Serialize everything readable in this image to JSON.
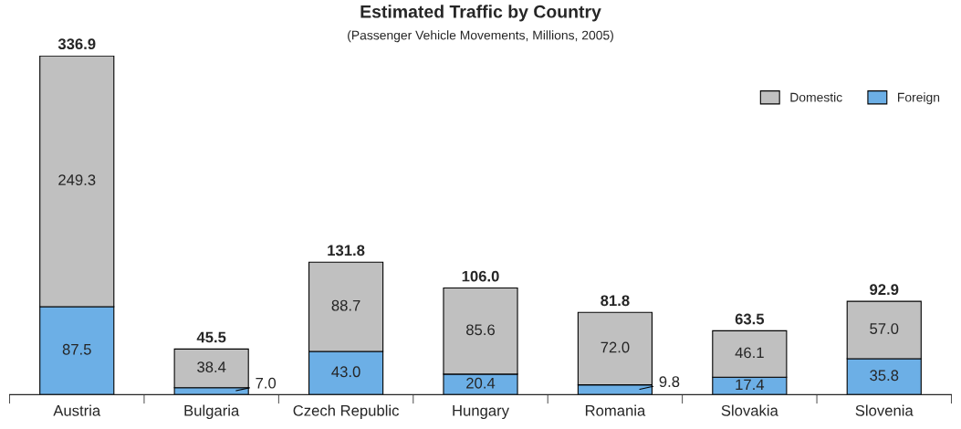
{
  "chart_data": {
    "type": "bar",
    "title": "Estimated Traffic by Country",
    "subtitle": "(Passenger Vehicle Movements, Millions, 2005)",
    "categories": [
      "Austria",
      "Bulgaria",
      "Czech Republic",
      "Hungary",
      "Romania",
      "Slovakia",
      "Slovenia"
    ],
    "stacked": true,
    "legend": "top right",
    "tick_labels": "x",
    "grid": false,
    "series": [
      {
        "name": "Foreign",
        "color": "#6cafe6",
        "values": [
          87.5,
          7.0,
          43.0,
          20.4,
          9.8,
          17.4,
          35.8
        ],
        "value_labels": [
          "87.5",
          "7.0",
          "43.0",
          "20.4",
          "9.8",
          "17.4",
          "35.8"
        ]
      },
      {
        "name": "Domestic",
        "color": "#c0c0c0",
        "values": [
          249.3,
          38.4,
          88.7,
          85.6,
          72.0,
          46.1,
          57.0
        ],
        "value_labels": [
          "249.3",
          "38.4",
          "88.7",
          "85.6",
          "72.0",
          "46.1",
          "57.0"
        ]
      }
    ],
    "totals": [
      "336.9",
      "45.5",
      "131.8",
      "106.0",
      "81.8",
      "63.5",
      "92.9"
    ]
  }
}
